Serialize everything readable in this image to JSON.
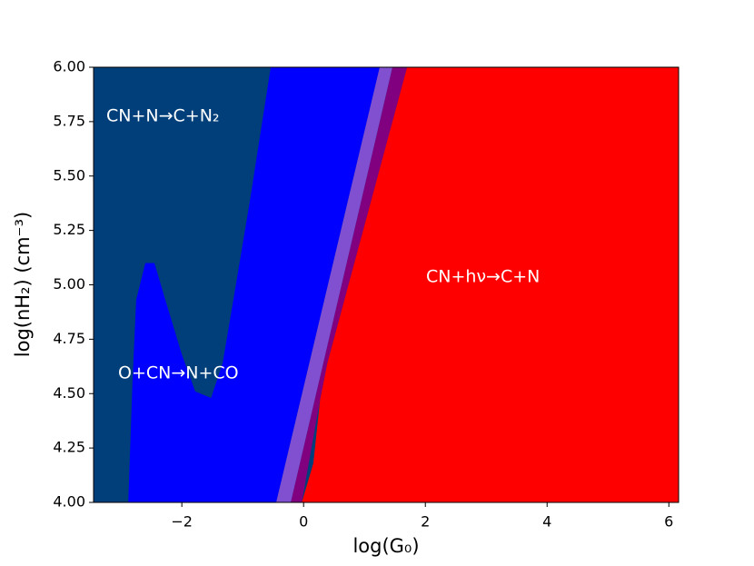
{
  "chart_data": {
    "type": "region",
    "xlabel": "log(G₀)",
    "ylabel": "log(nH₂) (cm⁻³)",
    "xlim": [
      -3.45,
      6.16
    ],
    "ylim": [
      4.0,
      6.0
    ],
    "xticks": [
      {
        "value": -2,
        "label": "−2"
      },
      0,
      2,
      4,
      6
    ],
    "yticks": [
      {
        "value": 4.0,
        "label": "4.00"
      },
      {
        "value": 4.25,
        "label": "4.25"
      },
      {
        "value": 4.5,
        "label": "4.50"
      },
      {
        "value": 4.75,
        "label": "4.75"
      },
      {
        "value": 5.0,
        "label": "5.00"
      },
      {
        "value": 5.25,
        "label": "5.25"
      },
      {
        "value": 5.5,
        "label": "5.50"
      },
      {
        "value": 5.75,
        "label": "5.75"
      },
      {
        "value": 6.0,
        "label": "6.00"
      }
    ],
    "background": "#003f7a",
    "regions": [
      {
        "color": "#0000ff",
        "x": [
          -0.54,
          1.25,
          -0.45,
          -2.88,
          -2.81,
          -2.75,
          -2.6,
          -2.45,
          -2.27,
          -2.0,
          -1.78,
          -1.52,
          -1.33,
          -1.13,
          -0.88
        ],
        "y": [
          6.0,
          6.0,
          4.0,
          4.0,
          4.56,
          4.93,
          5.1,
          5.1,
          4.93,
          4.68,
          4.51,
          4.48,
          4.64,
          4.97,
          5.39
        ]
      },
      {
        "color": "#8050d0",
        "x": [
          1.25,
          1.46,
          -0.21,
          -0.45
        ],
        "y": [
          6.0,
          6.0,
          4.0,
          4.0
        ]
      },
      {
        "color": "#800080",
        "x": [
          1.46,
          1.7,
          0.39,
          0.27,
          -0.03,
          -0.21
        ],
        "y": [
          6.0,
          6.0,
          4.64,
          4.47,
          4.0,
          4.0
        ]
      },
      {
        "color": "#ff0000",
        "x": [
          1.7,
          6.16,
          6.16,
          -0.03,
          0.16,
          0.27,
          0.39
        ],
        "y": [
          6.0,
          6.0,
          4.0,
          4.0,
          4.18,
          4.47,
          4.64
        ]
      }
    ],
    "annotations": [
      "CN+N→C+N₂",
      "O+CN→N+CO",
      "CN+hν→C+N"
    ]
  }
}
